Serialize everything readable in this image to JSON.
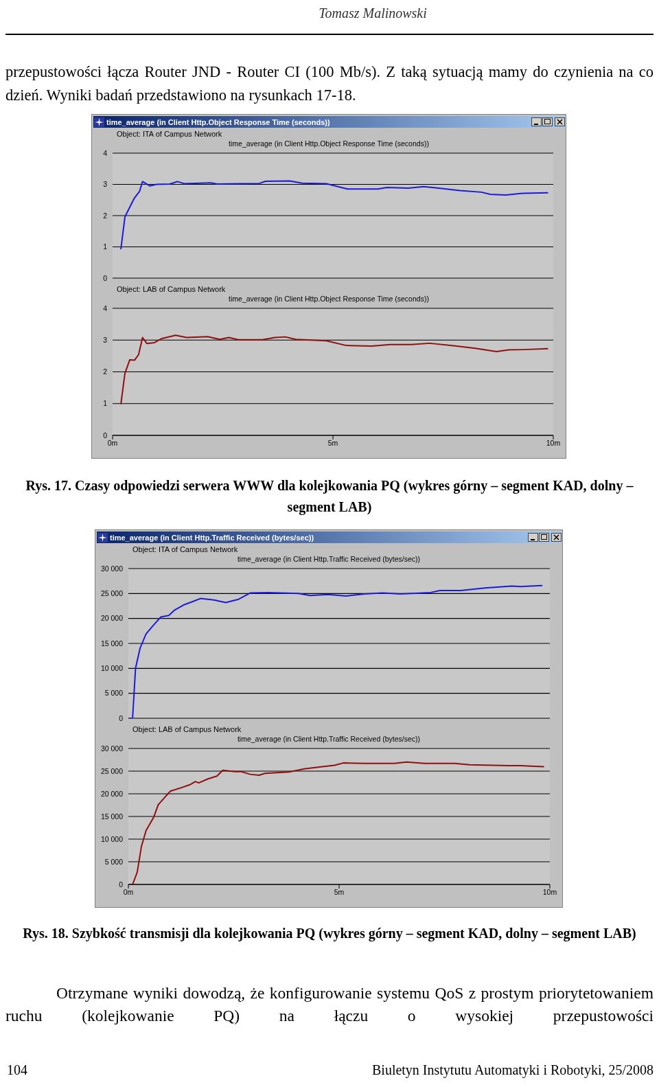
{
  "chart_data": [
    {
      "type": "line",
      "title": "time_average (in Client Http.Object Response Time (seconds))",
      "subtitle": "Object: ITA of Campus Network",
      "legend": "top",
      "grid": "y",
      "tick_labels": "y",
      "annotations": [
        "Tomasz Malinowski",
        "przepustowości łącza Router JND - Router CI (100 Mb/s). Z taką sytuacją mamy do czynienia na co dzień. Wyniki badań przedstawiono na rysunkach 17-18."
      ],
      "xlim": [
        0,
        10
      ],
      "ylim": [
        0,
        4
      ],
      "yticks": [
        0,
        1,
        2,
        3,
        4
      ],
      "series": [
        {
          "name": "time_average (in Client Http.Object Response Time (seconds))",
          "color": "#1c1cd8",
          "x": [
            0.19,
            0.28,
            0.49,
            0.61,
            0.68,
            0.85,
            0.99,
            1.3,
            1.47,
            1.64,
            2.23,
            2.37,
            2.92,
            3.33,
            3.47,
            4.02,
            4.3,
            4.85,
            5.33,
            6.02,
            6.23,
            6.71,
            7.06,
            7.4,
            7.88,
            8.37,
            8.57,
            8.92,
            9.26,
            9.87
          ],
          "values": [
            0.94,
            1.96,
            2.55,
            2.77,
            3.09,
            2.95,
            3.0,
            3.01,
            3.09,
            3.02,
            3.05,
            3.01,
            3.02,
            3.03,
            3.1,
            3.11,
            3.04,
            3.02,
            2.85,
            2.85,
            2.9,
            2.88,
            2.93,
            2.88,
            2.8,
            2.75,
            2.68,
            2.66,
            2.71,
            2.73
          ]
        }
      ]
    },
    {
      "type": "line",
      "subtitle": "Object: LAB of Campus Network",
      "legend": "top",
      "grid": "y",
      "annotations": [
        "Rys. 17. Czasy odpowiedzi serwera WWW dla kolejkowania PQ (wykres górny – segment KAD, dolny – segment LAB)"
      ],
      "xlim": [
        0,
        10
      ],
      "xticks": [
        {
          "value": 0,
          "label": "0m"
        },
        {
          "value": 5,
          "label": "5m"
        },
        {
          "value": 10,
          "label": "10m"
        }
      ],
      "ylim": [
        0,
        4
      ],
      "yticks": [
        0,
        1,
        2,
        3,
        4
      ],
      "series": [
        {
          "name": "time_average (in Client Http.Object Response Time (seconds))",
          "color": "#8e1010",
          "x": [
            0.19,
            0.28,
            0.39,
            0.5,
            0.59,
            0.68,
            0.78,
            0.95,
            1.12,
            1.43,
            1.68,
            2.16,
            2.43,
            2.64,
            2.85,
            3.4,
            3.68,
            3.92,
            4.16,
            4.85,
            5.3,
            5.88,
            6.3,
            6.78,
            7.19,
            7.74,
            8.23,
            8.71,
            8.99,
            9.33,
            9.87
          ],
          "values": [
            1.0,
            1.95,
            2.38,
            2.37,
            2.54,
            3.08,
            2.89,
            2.92,
            3.05,
            3.15,
            3.08,
            3.11,
            3.02,
            3.08,
            3.01,
            3.01,
            3.08,
            3.1,
            3.02,
            2.98,
            2.83,
            2.81,
            2.86,
            2.86,
            2.9,
            2.82,
            2.74,
            2.64,
            2.69,
            2.7,
            2.73
          ]
        }
      ]
    },
    {
      "type": "line",
      "title": "time_average (in Client Http.Traffic Received (bytes/sec))",
      "subtitle": "Object: ITA of Campus Network",
      "legend": "top",
      "grid": "y",
      "tick_labels": "y",
      "xlim": [
        0,
        10
      ],
      "ylim": [
        0,
        30000
      ],
      "yticks": [
        0,
        {
          "value": 5000,
          "label": "5 000"
        },
        {
          "value": 10000,
          "label": "10 000"
        },
        {
          "value": 15000,
          "label": "15 000"
        },
        {
          "value": 20000,
          "label": "20 000"
        },
        {
          "value": 25000,
          "label": "25 000"
        },
        {
          "value": 30000,
          "label": "30 000"
        }
      ],
      "series": [
        {
          "name": "time_average (in Client Http.Traffic Received (bytes/sec))",
          "color": "#1c1cd8",
          "x": [
            0,
            0.1,
            0.17,
            0.28,
            0.42,
            0.6,
            0.77,
            0.96,
            1.1,
            1.31,
            1.53,
            1.71,
            2.03,
            2.31,
            2.6,
            2.89,
            3.31,
            4.03,
            4.31,
            4.74,
            5.17,
            5.6,
            6.03,
            6.46,
            7.17,
            7.39,
            7.89,
            8.46,
            9.1,
            9.31,
            9.81
          ],
          "values": [
            0,
            0,
            10000,
            14100,
            16900,
            18700,
            20300,
            20600,
            21700,
            22700,
            23400,
            24000,
            23700,
            23200,
            23800,
            25100,
            25200,
            25000,
            24600,
            24800,
            24500,
            24900,
            25100,
            24900,
            25200,
            25600,
            25600,
            26100,
            26500,
            26400,
            26600
          ]
        }
      ]
    },
    {
      "type": "line",
      "subtitle": "Object: LAB of Campus Network",
      "legend": "top",
      "grid": "y",
      "annotations": [
        "Rys. 18. Szybkość transmisji dla kolejkowania PQ (wykres górny – segment KAD, dolny – segment LAB)",
        "Otrzymane wyniki dowodzą, że konfigurowanie systemu QoS z prostym priorytetowaniem ruchu (kolejkowanie PQ) na łączu o wysokiej przepustowości",
        "104",
        "Biuletyn Instytutu Automatyki i Robotyki, 25/2008"
      ],
      "xlim": [
        0,
        10
      ],
      "xticks": [
        {
          "value": 0,
          "label": "0m"
        },
        {
          "value": 5,
          "label": "5m"
        },
        {
          "value": 10,
          "label": "10m"
        }
      ],
      "ylim": [
        0,
        30000
      ],
      "yticks": [
        0,
        {
          "value": 5000,
          "label": "5 000"
        },
        {
          "value": 10000,
          "label": "10 000"
        },
        {
          "value": 15000,
          "label": "15 000"
        },
        {
          "value": 20000,
          "label": "20 000"
        },
        {
          "value": 25000,
          "label": "25 000"
        },
        {
          "value": 30000,
          "label": "30 000"
        }
      ],
      "series": [
        {
          "name": "time_average (in Client Http.Traffic Received (bytes/sec))",
          "color": "#8e1010",
          "x": [
            0,
            0.1,
            0.21,
            0.31,
            0.42,
            0.6,
            0.71,
            0.89,
            1.0,
            1.21,
            1.46,
            1.59,
            1.67,
            1.89,
            2.1,
            2.24,
            2.53,
            2.67,
            2.89,
            3.1,
            3.24,
            3.81,
            4.17,
            4.53,
            4.89,
            5.1,
            5.6,
            6.31,
            6.6,
            7.03,
            7.74,
            8.1,
            9.03,
            9.31,
            9.85
          ],
          "values": [
            0,
            0,
            2700,
            8400,
            11900,
            14800,
            17600,
            19500,
            20600,
            21200,
            22000,
            22700,
            22400,
            23300,
            23900,
            25200,
            24900,
            24900,
            24300,
            24100,
            24500,
            24800,
            25500,
            25900,
            26300,
            26800,
            26700,
            26700,
            27000,
            26700,
            26700,
            26400,
            26200,
            26200,
            26000
          ]
        }
      ]
    }
  ]
}
